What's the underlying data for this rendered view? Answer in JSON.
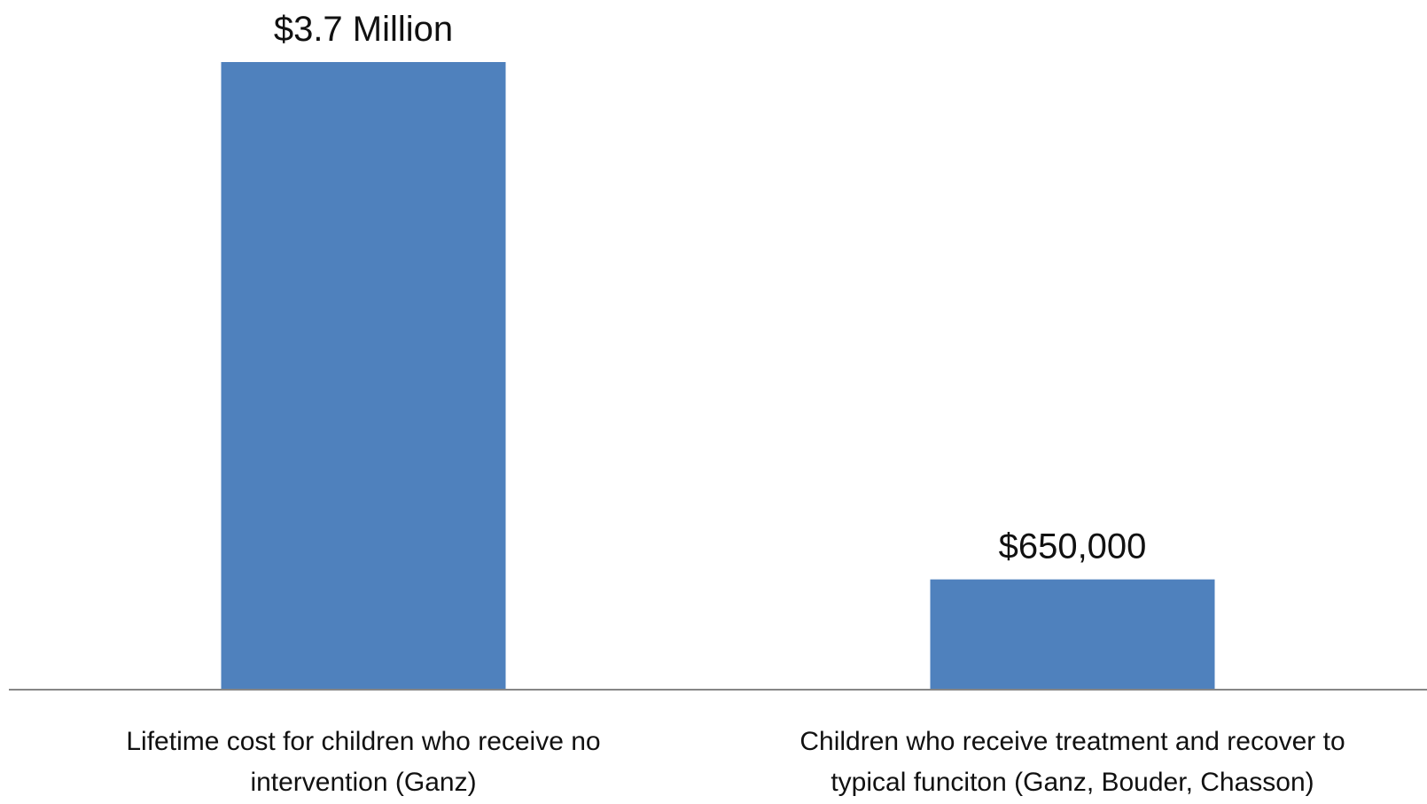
{
  "chart_data": {
    "type": "bar",
    "categories": [
      "Lifetime cost for children who receive no intervention (Ganz)",
      "Children who receive treatment and recover to typical funciton (Ganz, Bouder, Chasson)"
    ],
    "category_label_lines": [
      [
        "Lifetime cost for children who receive no",
        "intervention (Ganz)"
      ],
      [
        "Children who receive treatment and recover to",
        "typical funciton (Ganz, Bouder, Chasson)"
      ]
    ],
    "values": [
      3700000,
      650000
    ],
    "data_labels": [
      "$3.7 Million",
      "$650,000"
    ],
    "ylim": [
      0,
      3700000
    ],
    "title": "",
    "xlabel": "",
    "ylabel": "",
    "grid": false,
    "legend": "none",
    "colors": {
      "bar": "#4F81BD",
      "axis": "#868686",
      "text": "#111111",
      "background": "#FFFFFF"
    }
  }
}
